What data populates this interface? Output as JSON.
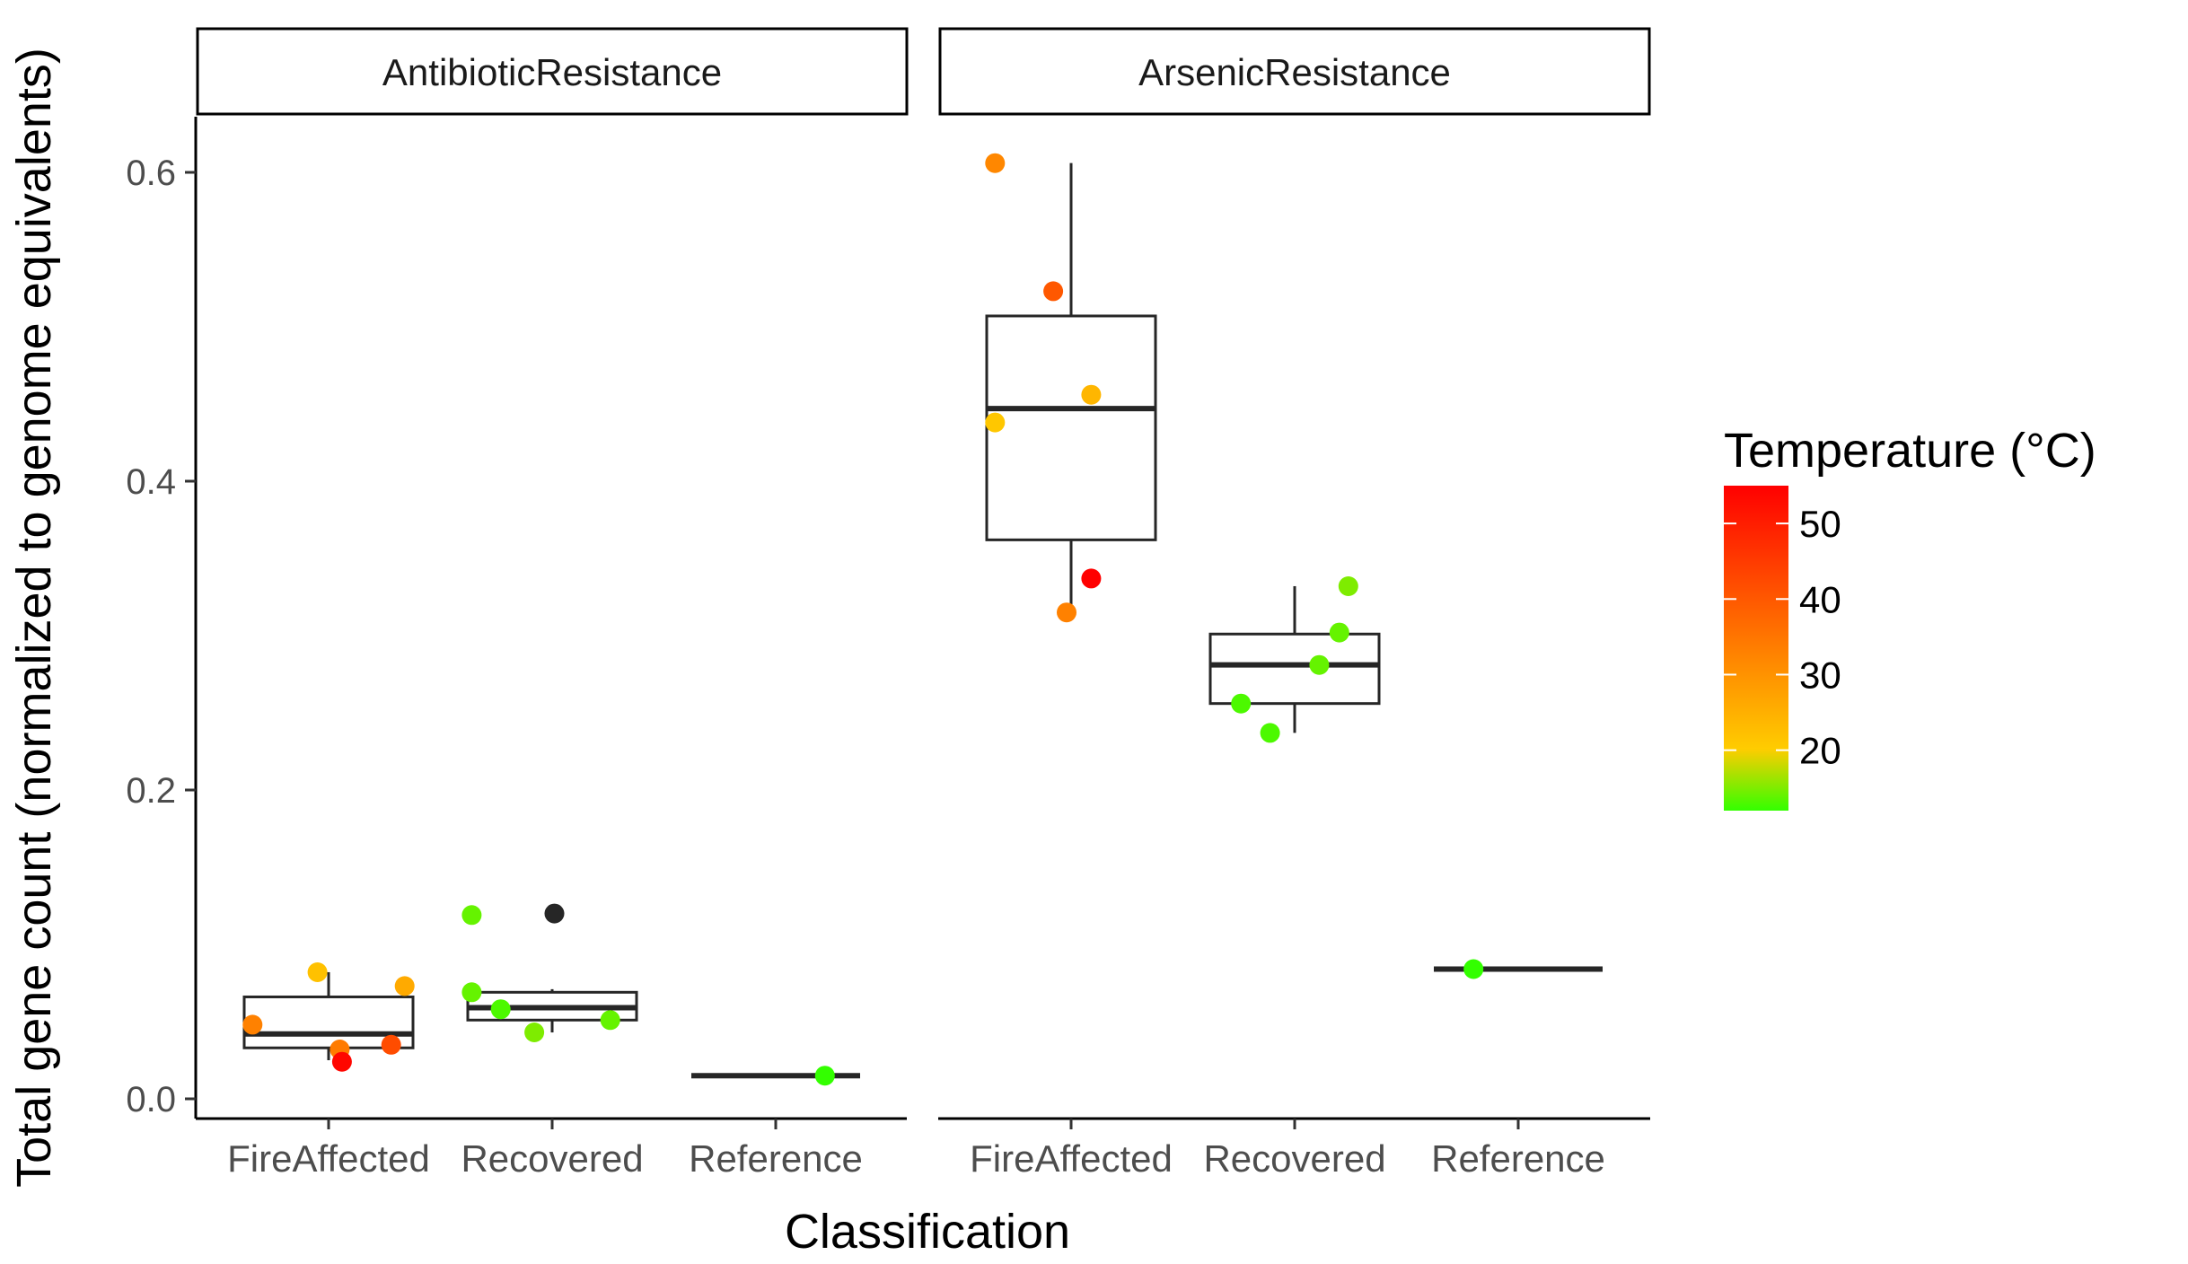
{
  "chart_data": {
    "type": "boxplot",
    "facets": [
      "AntibioticResistance",
      "ArsenicResistance"
    ],
    "categories": [
      "FireAffected",
      "Recovered",
      "Reference"
    ],
    "xlabel": "Classification",
    "ylabel": "Total gene count (normalized to genome equivalents)",
    "ylim": [
      0,
      0.65
    ],
    "y_ticks": [
      0.0,
      0.2,
      0.4,
      0.6
    ],
    "y_tick_labels": [
      "0.0",
      "0.2",
      "0.4",
      "0.6"
    ],
    "grid": false,
    "legend": {
      "title": "Temperature (°C)",
      "position": "right",
      "ticks": [
        20,
        30,
        40,
        50
      ],
      "tick_labels": [
        "20",
        "30",
        "40",
        "50"
      ],
      "range": [
        12,
        55
      ],
      "colors": {
        "low": "#33ff00",
        "mid": "#ffcc00",
        "high": "#ff0000"
      },
      "na_color": "#262626"
    },
    "boxes": [
      {
        "facet": 0,
        "category": 0,
        "whisker_low": 0.025,
        "q1": 0.033,
        "median": 0.042,
        "q3": 0.066,
        "whisker_high": 0.082
      },
      {
        "facet": 0,
        "category": 1,
        "whisker_low": 0.043,
        "q1": 0.051,
        "median": 0.059,
        "q3": 0.069,
        "whisker_high": 0.071
      },
      {
        "facet": 0,
        "category": 2,
        "whisker_low": 0.015,
        "q1": 0.015,
        "median": 0.015,
        "q3": 0.015,
        "whisker_high": 0.015
      },
      {
        "facet": 1,
        "category": 0,
        "whisker_low": 0.315,
        "q1": 0.362,
        "median": 0.447,
        "q3": 0.507,
        "whisker_high": 0.606
      },
      {
        "facet": 1,
        "category": 1,
        "whisker_low": 0.237,
        "q1": 0.256,
        "median": 0.281,
        "q3": 0.301,
        "whisker_high": 0.332
      },
      {
        "facet": 1,
        "category": 2,
        "whisker_low": 0.084,
        "q1": 0.084,
        "median": 0.084,
        "q3": 0.084,
        "whisker_high": 0.084
      }
    ],
    "points": [
      {
        "facet": 0,
        "category": 0,
        "jitter": -0.34,
        "y": 0.048,
        "temperature": 33
      },
      {
        "facet": 0,
        "category": 0,
        "jitter": -0.05,
        "y": 0.082,
        "temperature": 22
      },
      {
        "facet": 0,
        "category": 0,
        "jitter": 0.05,
        "y": 0.032,
        "temperature": 34
      },
      {
        "facet": 0,
        "category": 0,
        "jitter": 0.06,
        "y": 0.024,
        "temperature": 54
      },
      {
        "facet": 0,
        "category": 0,
        "jitter": 0.28,
        "y": 0.035,
        "temperature": 42
      },
      {
        "facet": 0,
        "category": 0,
        "jitter": 0.34,
        "y": 0.073,
        "temperature": 26
      },
      {
        "facet": 0,
        "category": 1,
        "jitter": -0.36,
        "y": 0.119,
        "temperature": 14
      },
      {
        "facet": 0,
        "category": 1,
        "jitter": -0.36,
        "y": 0.069,
        "temperature": 14
      },
      {
        "facet": 0,
        "category": 1,
        "jitter": -0.23,
        "y": 0.058,
        "temperature": 13
      },
      {
        "facet": 0,
        "category": 1,
        "jitter": -0.08,
        "y": 0.043,
        "temperature": 15
      },
      {
        "facet": 0,
        "category": 1,
        "jitter": 0.01,
        "y": 0.12,
        "temperature": null
      },
      {
        "facet": 0,
        "category": 1,
        "jitter": 0.26,
        "y": 0.051,
        "temperature": 14
      },
      {
        "facet": 0,
        "category": 2,
        "jitter": 0.22,
        "y": 0.015,
        "temperature": 12
      },
      {
        "facet": 1,
        "category": 0,
        "jitter": -0.34,
        "y": 0.438,
        "temperature": 21
      },
      {
        "facet": 1,
        "category": 0,
        "jitter": -0.34,
        "y": 0.606,
        "temperature": 32
      },
      {
        "facet": 1,
        "category": 0,
        "jitter": -0.08,
        "y": 0.523,
        "temperature": 40
      },
      {
        "facet": 1,
        "category": 0,
        "jitter": -0.02,
        "y": 0.315,
        "temperature": 33
      },
      {
        "facet": 1,
        "category": 0,
        "jitter": 0.09,
        "y": 0.456,
        "temperature": 24
      },
      {
        "facet": 1,
        "category": 0,
        "jitter": 0.09,
        "y": 0.337,
        "temperature": 55
      },
      {
        "facet": 1,
        "category": 1,
        "jitter": -0.24,
        "y": 0.256,
        "temperature": 13
      },
      {
        "facet": 1,
        "category": 1,
        "jitter": -0.11,
        "y": 0.237,
        "temperature": 13
      },
      {
        "facet": 1,
        "category": 1,
        "jitter": 0.11,
        "y": 0.281,
        "temperature": 14
      },
      {
        "facet": 1,
        "category": 1,
        "jitter": 0.2,
        "y": 0.302,
        "temperature": 14
      },
      {
        "facet": 1,
        "category": 1,
        "jitter": 0.24,
        "y": 0.332,
        "temperature": 15
      },
      {
        "facet": 1,
        "category": 2,
        "jitter": -0.2,
        "y": 0.084,
        "temperature": 12
      }
    ]
  }
}
